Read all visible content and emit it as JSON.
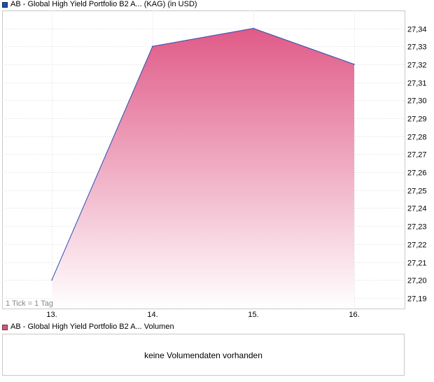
{
  "legend": {
    "price_label": "AB - Global High Yield Portfolio B2 A... (KAG) (in USD)",
    "volume_label": "AB - Global High Yield Portfolio B2 A... Volumen"
  },
  "volume_panel": {
    "message": "keine Volumendaten vorhanden"
  },
  "tick_note": "1 Tick = 1 Tag",
  "colors": {
    "line": "#2a4fb0",
    "fill_top": "#e05a88",
    "fill_bottom": "#ffffff",
    "grid": "#dcdcdc",
    "frame": "#c8c8c8"
  },
  "chart_data": {
    "type": "area",
    "x": [
      "13.",
      "14.",
      "15.",
      "16."
    ],
    "series": [
      {
        "values": [
          27.2,
          27.33,
          27.34,
          27.32
        ]
      }
    ],
    "xlabel": "",
    "ylabel": "",
    "ylim": [
      27.185,
      27.355
    ],
    "y_ticks": [
      "27,19",
      "27,20",
      "27,21",
      "27,22",
      "27,23",
      "27,24",
      "27,25",
      "27,26",
      "27,27",
      "27,28",
      "27,29",
      "27,30",
      "27,31",
      "27,32",
      "27,33",
      "27,34"
    ],
    "y_axis_side": "right",
    "grid": true
  }
}
